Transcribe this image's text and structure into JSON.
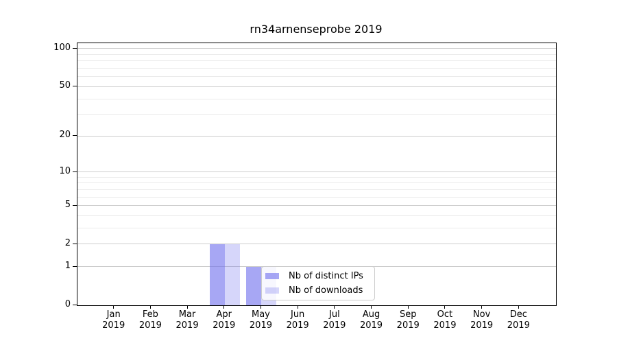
{
  "title": "rn34arnenseprobe 2019",
  "chart_data": {
    "type": "bar",
    "title": "rn34arnenseprobe 2019",
    "categories": [
      "Jan 2019",
      "Feb 2019",
      "Mar 2019",
      "Apr 2019",
      "May 2019",
      "Jun 2019",
      "Jul 2019",
      "Aug 2019",
      "Sep 2019",
      "Oct 2019",
      "Nov 2019",
      "Dec 2019"
    ],
    "series": [
      {
        "name": "Nb of distinct IPs",
        "values": [
          0,
          0,
          0,
          2,
          1,
          0,
          0,
          0,
          0,
          0,
          0,
          0
        ]
      },
      {
        "name": "Nb of downloads",
        "values": [
          0,
          0,
          0,
          2,
          1,
          0,
          0,
          0,
          0,
          0,
          0,
          0
        ]
      }
    ],
    "xlabel": "",
    "ylabel": "",
    "y_scale": "log1p",
    "y_major_ticks": [
      0,
      1,
      2,
      5,
      10,
      20,
      50,
      100
    ],
    "y_tick_labels": [
      "0",
      "1",
      "2",
      "5",
      "10",
      "20",
      "50",
      "100"
    ],
    "y_minor_gridlines": [
      3,
      4,
      6,
      7,
      8,
      9,
      30,
      40,
      60,
      70,
      80,
      90
    ],
    "ylim": [
      0,
      110
    ],
    "grid": true,
    "legend_position": "lower center, inside plot"
  },
  "legend": {
    "items": [
      {
        "label": "Nb of distinct IPs",
        "series_index": 0
      },
      {
        "label": "Nb of downloads",
        "series_index": 1
      }
    ]
  },
  "colors": {
    "bar_base": "#6c6ced",
    "bar_distinct_ips_alpha": 0.6,
    "bar_downloads_alpha": 0.28,
    "bar_distinct_ips_on_white": "#a7a7f4",
    "bar_downloads_on_white": "#d6d6f8",
    "grid_major": "#cccccc",
    "grid_minor": "#ebebeb",
    "axis": "#000000",
    "legend_border": "#cccccc",
    "background": "#ffffff"
  }
}
